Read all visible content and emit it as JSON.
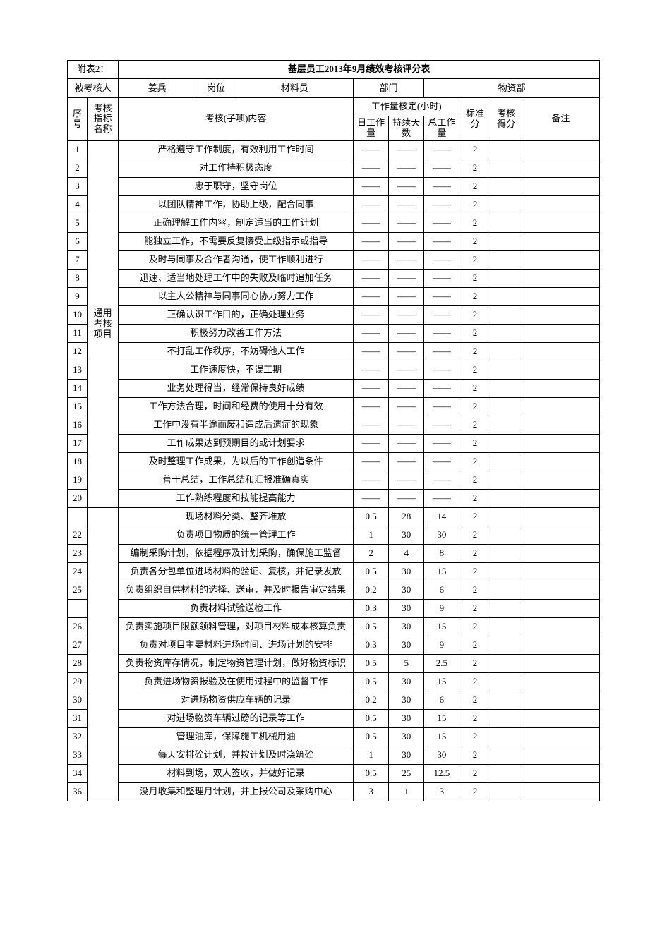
{
  "attachment_label": "附表2：",
  "title": "基层员工2013年9月绩效考核评分表",
  "header_row": {
    "examinee_label": "被考核人",
    "examinee_value": "姜兵",
    "post_label": "岗位",
    "post_value": "材料员",
    "dept_label": "部门",
    "dept_value": "物资部"
  },
  "columns": {
    "seq": "序号",
    "idx_name": "考核指标名称",
    "content": "考核(子项)内容",
    "workload_group": "工作量核定(小时)",
    "daily": "日工作量",
    "days": "持续天数",
    "total": "总工作量",
    "std": "标准分",
    "score": "考核得分",
    "remark": "备注"
  },
  "group1_label": "通用考核项目",
  "group1_rows": [
    {
      "seq": "1",
      "content": "严格遵守工作制度，有效利用工作时间",
      "daily": "——",
      "days": "——",
      "total": "——",
      "std": "2"
    },
    {
      "seq": "2",
      "content": "对工作持积极态度",
      "daily": "——",
      "days": "——",
      "total": "——",
      "std": "2"
    },
    {
      "seq": "3",
      "content": "忠于职守，坚守岗位",
      "daily": "——",
      "days": "——",
      "total": "——",
      "std": "2"
    },
    {
      "seq": "4",
      "content": "以团队精神工作，协助上级，配合同事",
      "daily": "——",
      "days": "——",
      "total": "——",
      "std": "2"
    },
    {
      "seq": "5",
      "content": "正确理解工作内容，制定适当的工作计划",
      "daily": "——",
      "days": "——",
      "total": "——",
      "std": "2"
    },
    {
      "seq": "6",
      "content": "能独立工作，不需要反复接受上级指示或指导",
      "daily": "——",
      "days": "——",
      "total": "——",
      "std": "2"
    },
    {
      "seq": "7",
      "content": "及时与同事及合作者沟通，使工作顺利进行",
      "daily": "——",
      "days": "——",
      "total": "——",
      "std": "2"
    },
    {
      "seq": "8",
      "content": "迅速、适当地处理工作中的失败及临时追加任务",
      "daily": "——",
      "days": "——",
      "total": "——",
      "std": "2"
    },
    {
      "seq": "9",
      "content": "以主人公精神与同事同心协力努力工作",
      "daily": "——",
      "days": "——",
      "total": "——",
      "std": "2"
    },
    {
      "seq": "10",
      "content": "正确认识工作目的，正确处理业务",
      "daily": "——",
      "days": "——",
      "total": "——",
      "std": "2"
    },
    {
      "seq": "11",
      "content": "积极努力改善工作方法",
      "daily": "——",
      "days": "——",
      "total": "——",
      "std": "2"
    },
    {
      "seq": "12",
      "content": "不打乱工作秩序，不妨碍他人工作",
      "daily": "——",
      "days": "——",
      "total": "——",
      "std": "2"
    },
    {
      "seq": "13",
      "content": "工作速度快，不误工期",
      "daily": "——",
      "days": "——",
      "total": "——",
      "std": "2"
    },
    {
      "seq": "14",
      "content": "业务处理得当，经常保持良好成绩",
      "daily": "——",
      "days": "——",
      "total": "——",
      "std": "2"
    },
    {
      "seq": "15",
      "content": "工作方法合理，时间和经费的使用十分有效",
      "daily": "——",
      "days": "——",
      "total": "——",
      "std": "2"
    },
    {
      "seq": "16",
      "content": "工作中没有半途而废和造成后遗症的现象",
      "daily": "——",
      "days": "——",
      "total": "——",
      "std": "2"
    },
    {
      "seq": "17",
      "content": "工作成果达到预期目的或计划要求",
      "daily": "——",
      "days": "——",
      "total": "——",
      "std": "2"
    },
    {
      "seq": "18",
      "content": "及时整理工作成果，为以后的工作创造条件",
      "daily": "——",
      "days": "——",
      "total": "——",
      "std": "2"
    },
    {
      "seq": "19",
      "content": "善于总结，工作总结和汇报准确真实",
      "daily": "——",
      "days": "——",
      "total": "——",
      "std": "2"
    },
    {
      "seq": "20",
      "content": "工作熟练程度和技能提高能力",
      "daily": "——",
      "days": "——",
      "total": "——",
      "std": "2"
    }
  ],
  "group2_rows": [
    {
      "seq": "",
      "content": "现场材料分类、整齐堆放",
      "daily": "0.5",
      "days": "28",
      "total": "14",
      "std": "2"
    },
    {
      "seq": "22",
      "content": "负责项目物质的统一管理工作",
      "daily": "1",
      "days": "30",
      "total": "30",
      "std": "2"
    },
    {
      "seq": "23",
      "content": "编制采购计划，依据程序及计划采购，确保施工监督",
      "daily": "2",
      "days": "4",
      "total": "8",
      "std": "2"
    },
    {
      "seq": "24",
      "content": "负责各分包单位进场材料的验证、复核，并记录发放",
      "daily": "0.5",
      "days": "30",
      "total": "15",
      "std": "2"
    },
    {
      "seq": "25",
      "content": "负责组织自供材料的选择、送审，并及时报告审定结果",
      "daily": "0.2",
      "days": "30",
      "total": "6",
      "std": "2"
    },
    {
      "seq": "",
      "content": "负责材料试验送检工作",
      "daily": "0.3",
      "days": "30",
      "total": "9",
      "std": "2"
    },
    {
      "seq": "26",
      "content": "负责实施项目限额领料管理，对项目材料成本核算负责",
      "daily": "0.5",
      "days": "30",
      "total": "15",
      "std": "2"
    },
    {
      "seq": "27",
      "content": "负责对项目主要材料进场时间、进场计划的安排",
      "daily": "0.3",
      "days": "30",
      "total": "9",
      "std": "2"
    },
    {
      "seq": "28",
      "content": "负责物资库存情况，制定物资管理计划，做好物资标识",
      "daily": "0.5",
      "days": "5",
      "total": "2.5",
      "std": "2"
    },
    {
      "seq": "29",
      "content": "负责进场物资报验及在使用过程中的监督工作",
      "daily": "0.5",
      "days": "30",
      "total": "15",
      "std": "2"
    },
    {
      "seq": "30",
      "content": "对进场物资供应车辆的记录",
      "daily": "0.2",
      "days": "30",
      "total": "6",
      "std": "2"
    },
    {
      "seq": "31",
      "content": "对进场物资车辆过磅的记录等工作",
      "daily": "0.5",
      "days": "30",
      "total": "15",
      "std": "2"
    },
    {
      "seq": "32",
      "content": "管理油库，保障施工机械用油",
      "daily": "0.5",
      "days": "30",
      "total": "15",
      "std": "2"
    },
    {
      "seq": "33",
      "content": "每天安排砼计划，并按计划及时浇筑砼",
      "daily": "1",
      "days": "30",
      "total": "30",
      "std": "2"
    },
    {
      "seq": "34",
      "content": "材料到场，双人签收，并做好记录",
      "daily": "0.5",
      "days": "25",
      "total": "12.5",
      "std": "2"
    },
    {
      "seq": "36",
      "content": "没月收集和整理月计划，并上报公司及采购中心",
      "daily": "3",
      "days": "1",
      "total": "3",
      "std": "2"
    }
  ]
}
